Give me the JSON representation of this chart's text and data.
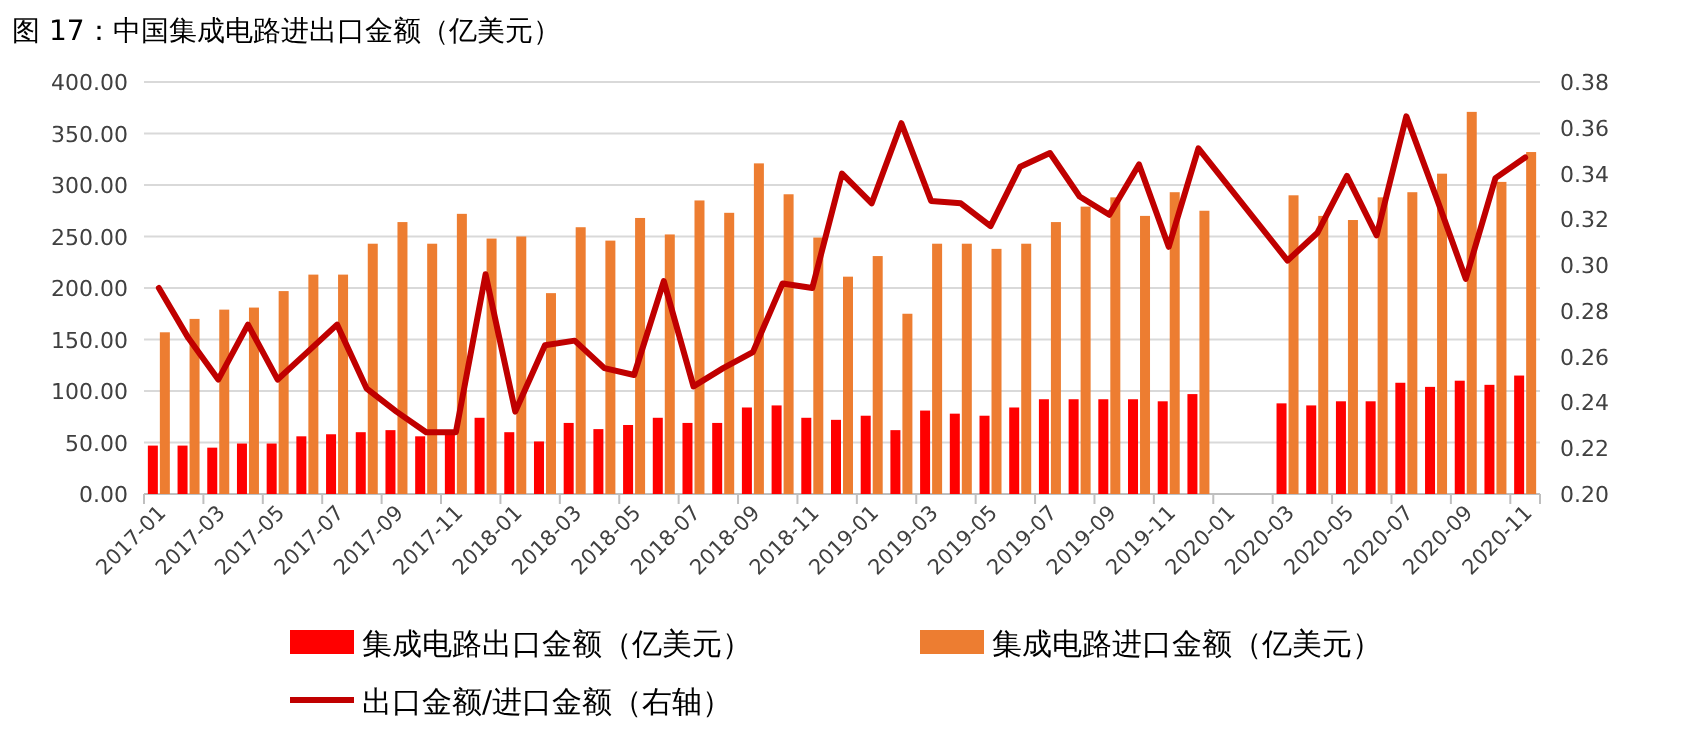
{
  "chart_data": {
    "type": "bar",
    "title": "图 17：中国集成电路进出口金额（亿美元）",
    "categories": [
      "2017-01",
      null,
      "2017-03",
      null,
      "2017-05",
      null,
      "2017-07",
      null,
      "2017-09",
      null,
      "2017-11",
      null,
      "2018-01",
      null,
      "2018-03",
      null,
      "2018-05",
      null,
      "2018-07",
      null,
      "2018-09",
      null,
      "2018-11",
      null,
      "2019-01",
      null,
      "2019-03",
      null,
      "2019-05",
      null,
      "2019-07",
      null,
      "2019-09",
      null,
      "2019-11",
      null,
      "2020-01",
      null,
      "2020-03",
      null,
      "2020-05",
      null,
      "2020-07",
      null,
      "2020-09",
      null,
      "2020-11"
    ],
    "series": [
      {
        "name": "集成电路出口金额（亿美元）",
        "color": "#ff0000",
        "values": [
          47,
          47,
          45,
          49,
          49,
          56,
          58,
          60,
          62,
          56,
          60,
          74,
          60,
          51,
          69,
          63,
          67,
          74,
          69,
          69,
          84,
          86,
          74,
          72,
          76,
          62,
          81,
          78,
          76,
          84,
          92,
          92,
          92,
          92,
          90,
          97,
          null,
          null,
          88,
          86,
          90,
          90,
          108,
          104,
          110,
          106,
          115
        ]
      },
      {
        "name": "集成电路进口金额（亿美元）",
        "color": "#ed7d31",
        "values": [
          157,
          170,
          179,
          181,
          197,
          213,
          213,
          243,
          264,
          243,
          272,
          248,
          250,
          195,
          259,
          246,
          268,
          252,
          285,
          273,
          321,
          291,
          249,
          211,
          231,
          175,
          243,
          243,
          238,
          243,
          264,
          279,
          288,
          270,
          293,
          275,
          null,
          null,
          290,
          270,
          266,
          288,
          293,
          311,
          371,
          303,
          332
        ]
      },
      {
        "name": "出口金额/进口金额（右轴）",
        "type": "line",
        "axis": "y2",
        "color": "#c00000",
        "values": [
          0.29,
          0.268,
          0.25,
          0.274,
          0.25,
          0.262,
          0.274,
          0.246,
          0.236,
          0.227,
          0.227,
          0.296,
          0.236,
          0.265,
          0.267,
          0.255,
          0.252,
          0.293,
          0.247,
          0.255,
          0.262,
          0.292,
          0.29,
          0.34,
          0.327,
          0.362,
          0.328,
          0.327,
          0.317,
          0.343,
          0.349,
          0.33,
          0.322,
          0.344,
          0.308,
          0.351,
          null,
          null,
          0.302,
          0.314,
          0.339,
          0.313,
          0.365,
          0.33,
          0.294,
          0.338,
          0.347
        ]
      }
    ],
    "ylim": [
      0,
      400
    ],
    "yticks": [
      {
        "value": 0,
        "label": "0.00"
      },
      {
        "value": 50,
        "label": "50.00"
      },
      {
        "value": 100,
        "label": "100.00"
      },
      {
        "value": 150,
        "label": "150.00"
      },
      {
        "value": 200,
        "label": "200.00"
      },
      {
        "value": 250,
        "label": "250.00"
      },
      {
        "value": 300,
        "label": "300.00"
      },
      {
        "value": 350,
        "label": "350.00"
      },
      {
        "value": 400,
        "label": "400.00"
      }
    ],
    "y2lim": [
      0.2,
      0.38
    ],
    "y2ticks": [
      {
        "value": 0.2,
        "label": "0.20"
      },
      {
        "value": 0.22,
        "label": "0.22"
      },
      {
        "value": 0.24,
        "label": "0.24"
      },
      {
        "value": 0.26,
        "label": "0.26"
      },
      {
        "value": 0.28,
        "label": "0.28"
      },
      {
        "value": 0.3,
        "label": "0.30"
      },
      {
        "value": 0.32,
        "label": "0.32"
      },
      {
        "value": 0.34,
        "label": "0.34"
      },
      {
        "value": 0.36,
        "label": "0.36"
      },
      {
        "value": 0.38,
        "label": "0.38"
      }
    ],
    "grid": "y",
    "legend": "bottom"
  }
}
